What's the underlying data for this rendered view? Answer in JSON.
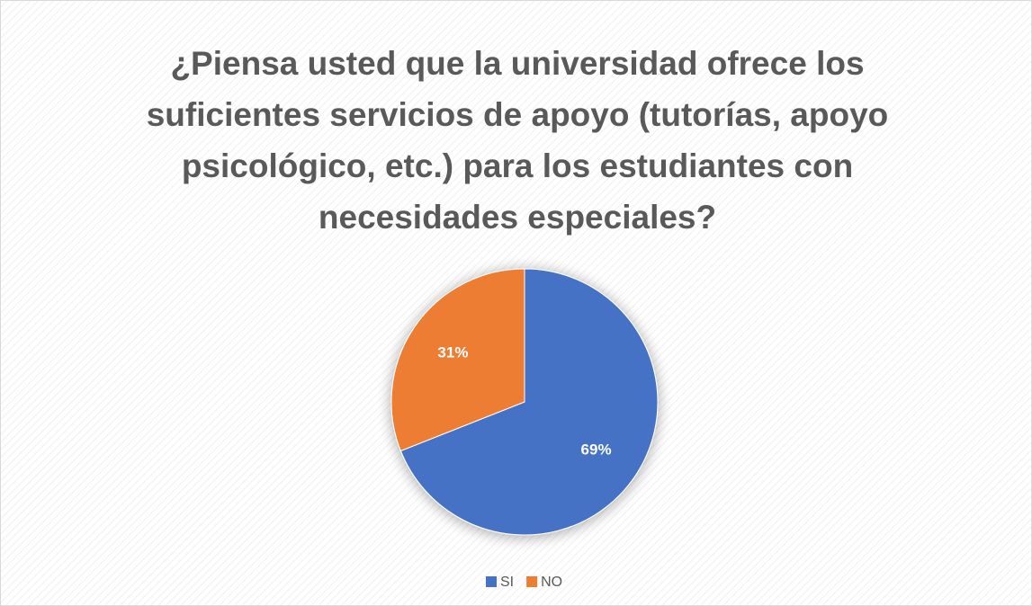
{
  "chart_data": {
    "type": "pie",
    "title": "¿Piensa usted que la universidad ofrece los suficientes servicios de apoyo (tutorías, apoyo psicológico, etc.) para los estudiantes con necesidades especiales?",
    "categories": [
      "SI",
      "NO"
    ],
    "values": [
      69,
      31
    ],
    "value_labels": [
      "69%",
      "31%"
    ],
    "colors": [
      "#4472c4",
      "#ed7d31"
    ],
    "legend": "bottom"
  }
}
